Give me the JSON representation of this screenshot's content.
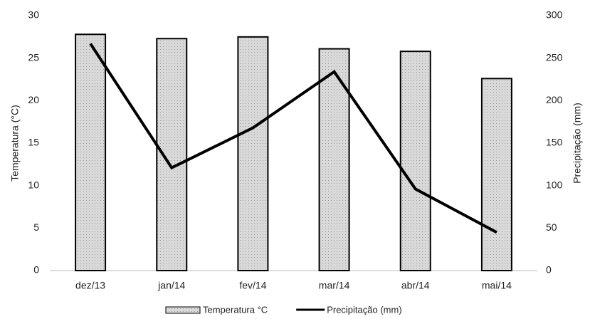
{
  "chart_data": {
    "type": "bar",
    "categories": [
      "dez/13",
      "jan/14",
      "fev/14",
      "mar/14",
      "abr/14",
      "mai/14"
    ],
    "series": [
      {
        "name": "Temperatura °C",
        "type": "bar",
        "color": "#d9d9d9",
        "axis": "y",
        "values": [
          27.8,
          27.3,
          27.5,
          26.1,
          25.8,
          22.6
        ]
      },
      {
        "name": "Precipitação (mm)",
        "type": "line",
        "color": "#000000",
        "axis": "y2",
        "values": [
          267,
          121,
          168,
          234,
          96,
          45
        ]
      }
    ],
    "ylabel": "Temperatura (°C)",
    "y2label": "Precipitação (mm)",
    "ylim": [
      0,
      30
    ],
    "yticks": [
      0,
      5,
      10,
      15,
      20,
      25,
      30
    ],
    "y2lim": [
      0,
      300
    ],
    "y2ticks": [
      0,
      50,
      100,
      150,
      200,
      250,
      300
    ],
    "legend": "bottom"
  }
}
